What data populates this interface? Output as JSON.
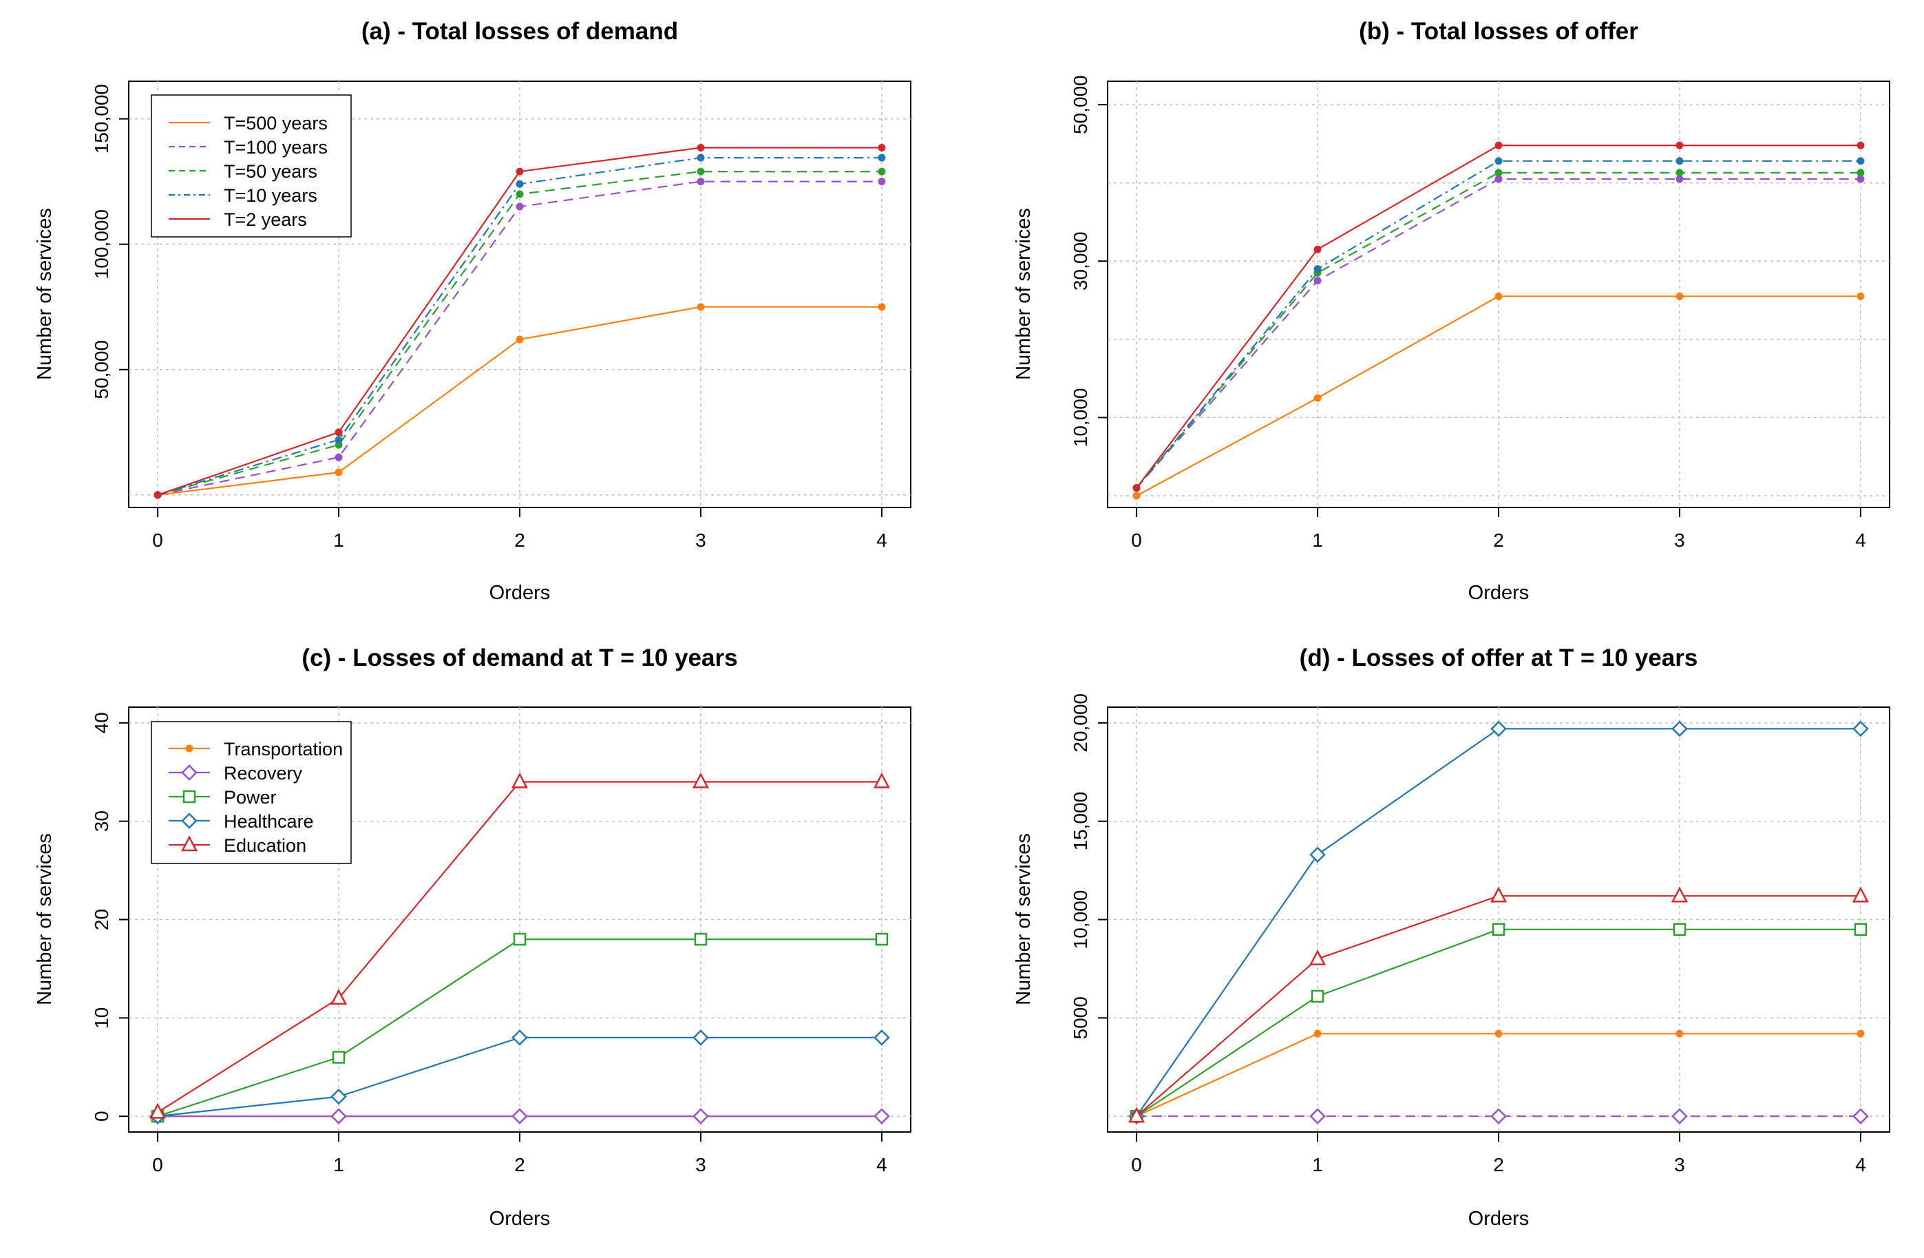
{
  "chart_data": [
    {
      "id": "a",
      "type": "line",
      "title": "(a) - Total losses of demand",
      "xlabel": "Orders",
      "ylabel": "Number of services",
      "x": [
        0,
        1,
        2,
        3,
        4
      ],
      "xlim": [
        -0.16,
        4.16
      ],
      "ylim": [
        -5000,
        165000
      ],
      "xticks": [
        0,
        1,
        2,
        3,
        4
      ],
      "xtick_labels": [
        "0",
        "1",
        "2",
        "3",
        "4"
      ],
      "yticks": [
        50000,
        100000,
        150000
      ],
      "ytick_labels": [
        "50,000",
        "100,000",
        "150,000"
      ],
      "grid_x": [
        0,
        1,
        2,
        3,
        4
      ],
      "grid_y": [
        0,
        50000,
        100000,
        150000
      ],
      "grid": true,
      "legend_position": "top-left",
      "series": [
        {
          "name": "T=500 years",
          "values": [
            0,
            9000,
            62000,
            75000,
            75000
          ],
          "color": "#ff7f0e",
          "dash": "solid",
          "marker": "dot"
        },
        {
          "name": "T=100 years",
          "values": [
            0,
            15000,
            115000,
            125000,
            125000
          ],
          "color": "#9b4dca",
          "dash": "dash",
          "marker": "dot"
        },
        {
          "name": "T=50 years",
          "values": [
            0,
            20000,
            120000,
            129000,
            129000
          ],
          "color": "#2ca02c",
          "dash": "dash",
          "marker": "dot"
        },
        {
          "name": "T=10 years",
          "values": [
            0,
            22000,
            124000,
            134500,
            134500
          ],
          "color": "#1f77b4",
          "dash": "dashdot",
          "marker": "dot"
        },
        {
          "name": "T=2 years",
          "values": [
            0,
            25000,
            129000,
            138500,
            138500
          ],
          "color": "#d62728",
          "dash": "solid",
          "marker": "dot"
        }
      ]
    },
    {
      "id": "b",
      "type": "line",
      "title": "(b) - Total losses of offer",
      "xlabel": "Orders",
      "ylabel": "Number of services",
      "x": [
        0,
        1,
        2,
        3,
        4
      ],
      "xlim": [
        -0.16,
        4.16
      ],
      "ylim": [
        -1500,
        53000
      ],
      "xticks": [
        0,
        1,
        2,
        3,
        4
      ],
      "xtick_labels": [
        "0",
        "1",
        "2",
        "3",
        "4"
      ],
      "yticks": [
        10000,
        30000,
        50000
      ],
      "ytick_labels": [
        "10,000",
        "30,000",
        "50,000"
      ],
      "grid_x": [
        0,
        1,
        2,
        3,
        4
      ],
      "grid_y": [
        0,
        10000,
        20000,
        30000,
        40000,
        50000
      ],
      "grid": true,
      "legend_position": "none",
      "series": [
        {
          "name": "T=500 years",
          "values": [
            0,
            12500,
            25500,
            25500,
            25500
          ],
          "color": "#ff7f0e",
          "dash": "solid",
          "marker": "dot"
        },
        {
          "name": "T=100 years",
          "values": [
            1000,
            27500,
            40500,
            40500,
            40500
          ],
          "color": "#9b4dca",
          "dash": "dash",
          "marker": "dot"
        },
        {
          "name": "T=50 years",
          "values": [
            1000,
            28500,
            41300,
            41300,
            41300
          ],
          "color": "#2ca02c",
          "dash": "dash",
          "marker": "dot"
        },
        {
          "name": "T=10 years",
          "values": [
            1000,
            29000,
            42800,
            42800,
            42800
          ],
          "color": "#1f77b4",
          "dash": "dashdot",
          "marker": "dot"
        },
        {
          "name": "T=2 years",
          "values": [
            1000,
            31500,
            44800,
            44800,
            44800
          ],
          "color": "#d62728",
          "dash": "solid",
          "marker": "dot"
        }
      ]
    },
    {
      "id": "c",
      "type": "line",
      "title": "(c) - Losses of demand at T = 10 years",
      "xlabel": "Orders",
      "ylabel": "Number of services",
      "x": [
        0,
        1,
        2,
        3,
        4
      ],
      "xlim": [
        -0.16,
        4.16
      ],
      "ylim": [
        -1.6,
        41.6
      ],
      "xticks": [
        0,
        1,
        2,
        3,
        4
      ],
      "xtick_labels": [
        "0",
        "1",
        "2",
        "3",
        "4"
      ],
      "yticks": [
        0,
        10,
        20,
        30,
        40
      ],
      "ytick_labels": [
        "0",
        "10",
        "20",
        "30",
        "40"
      ],
      "grid_x": [
        0,
        1,
        2,
        3,
        4
      ],
      "grid_y": [
        0,
        10,
        20,
        30,
        40
      ],
      "grid": true,
      "legend_position": "top-left",
      "series": [
        {
          "name": "Transportation",
          "values": [
            0,
            0,
            0,
            0,
            0
          ],
          "color": "#ff7f0e",
          "dash": "solid",
          "marker": "dot"
        },
        {
          "name": "Recovery",
          "values": [
            0,
            0,
            0,
            0,
            0
          ],
          "color": "#9b4dca",
          "dash": "solid",
          "marker": "diamond"
        },
        {
          "name": "Power",
          "values": [
            0,
            6,
            18,
            18,
            18
          ],
          "color": "#2ca02c",
          "dash": "solid",
          "marker": "square"
        },
        {
          "name": "Healthcare",
          "values": [
            0,
            2,
            8,
            8,
            8
          ],
          "color": "#1f77b4",
          "dash": "solid",
          "marker": "diamond"
        },
        {
          "name": "Education",
          "values": [
            0.4,
            12,
            34,
            34,
            34
          ],
          "color": "#d62728",
          "dash": "solid",
          "marker": "triangle"
        }
      ]
    },
    {
      "id": "d",
      "type": "line",
      "title": "(d) - Losses of offer at T = 10 years",
      "xlabel": "Orders",
      "ylabel": "Number of services",
      "x": [
        0,
        1,
        2,
        3,
        4
      ],
      "xlim": [
        -0.16,
        4.16
      ],
      "ylim": [
        -800,
        20800
      ],
      "xticks": [
        0,
        1,
        2,
        3,
        4
      ],
      "xtick_labels": [
        "0",
        "1",
        "2",
        "3",
        "4"
      ],
      "yticks": [
        5000,
        10000,
        15000,
        20000
      ],
      "ytick_labels": [
        "5000",
        "10,000",
        "15,000",
        "20,000"
      ],
      "grid_x": [
        0,
        1,
        2,
        3,
        4
      ],
      "grid_y": [
        0,
        5000,
        10000,
        15000,
        20000
      ],
      "grid": true,
      "legend_position": "none",
      "series": [
        {
          "name": "Transportation",
          "values": [
            0,
            4200,
            4200,
            4200,
            4200
          ],
          "color": "#ff7f0e",
          "dash": "solid",
          "marker": "dot"
        },
        {
          "name": "Recovery",
          "values": [
            0,
            0,
            0,
            0,
            0
          ],
          "color": "#9b4dca",
          "dash": "dash",
          "marker": "diamond"
        },
        {
          "name": "Power",
          "values": [
            0,
            6100,
            9500,
            9500,
            9500
          ],
          "color": "#2ca02c",
          "dash": "solid",
          "marker": "square"
        },
        {
          "name": "Healthcare",
          "values": [
            0,
            13300,
            19700,
            19700,
            19700
          ],
          "color": "#1f77b4",
          "dash": "solid",
          "marker": "diamond"
        },
        {
          "name": "Education",
          "values": [
            0,
            8000,
            11200,
            11200,
            11200
          ],
          "color": "#d62728",
          "dash": "solid",
          "marker": "triangle"
        }
      ]
    }
  ]
}
